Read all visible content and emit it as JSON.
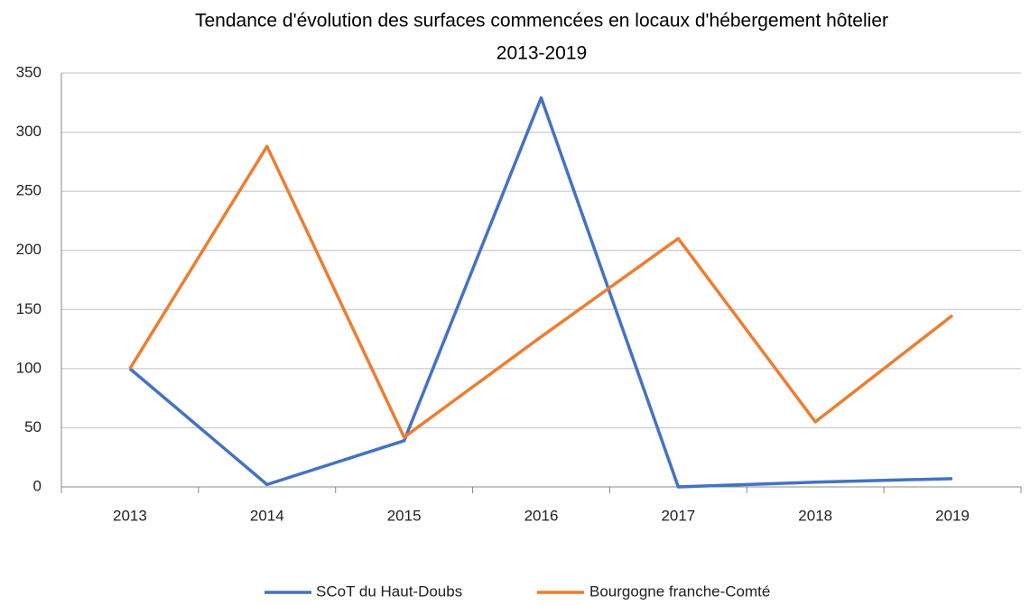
{
  "chart_data": {
    "type": "line",
    "title": [
      "Tendance d'évolution des surfaces commencées en locaux d'hébergement hôtelier",
      "2013-2019"
    ],
    "categories": [
      "2013",
      "2014",
      "2015",
      "2016",
      "2017",
      "2018",
      "2019"
    ],
    "series": [
      {
        "name": "SCoT du Haut-Doubs",
        "color": "#4472c4",
        "values": [
          100,
          2,
          39,
          329,
          0,
          4,
          7
        ]
      },
      {
        "name": "Bourgogne franche-Comté",
        "color": "#ed7d31",
        "values": [
          100,
          288,
          42,
          127,
          210,
          55,
          145
        ]
      }
    ],
    "ylim": [
      0,
      350
    ],
    "yticks": [
      0,
      50,
      100,
      150,
      200,
      250,
      300,
      350
    ],
    "grid": true,
    "legend": "bottom"
  }
}
